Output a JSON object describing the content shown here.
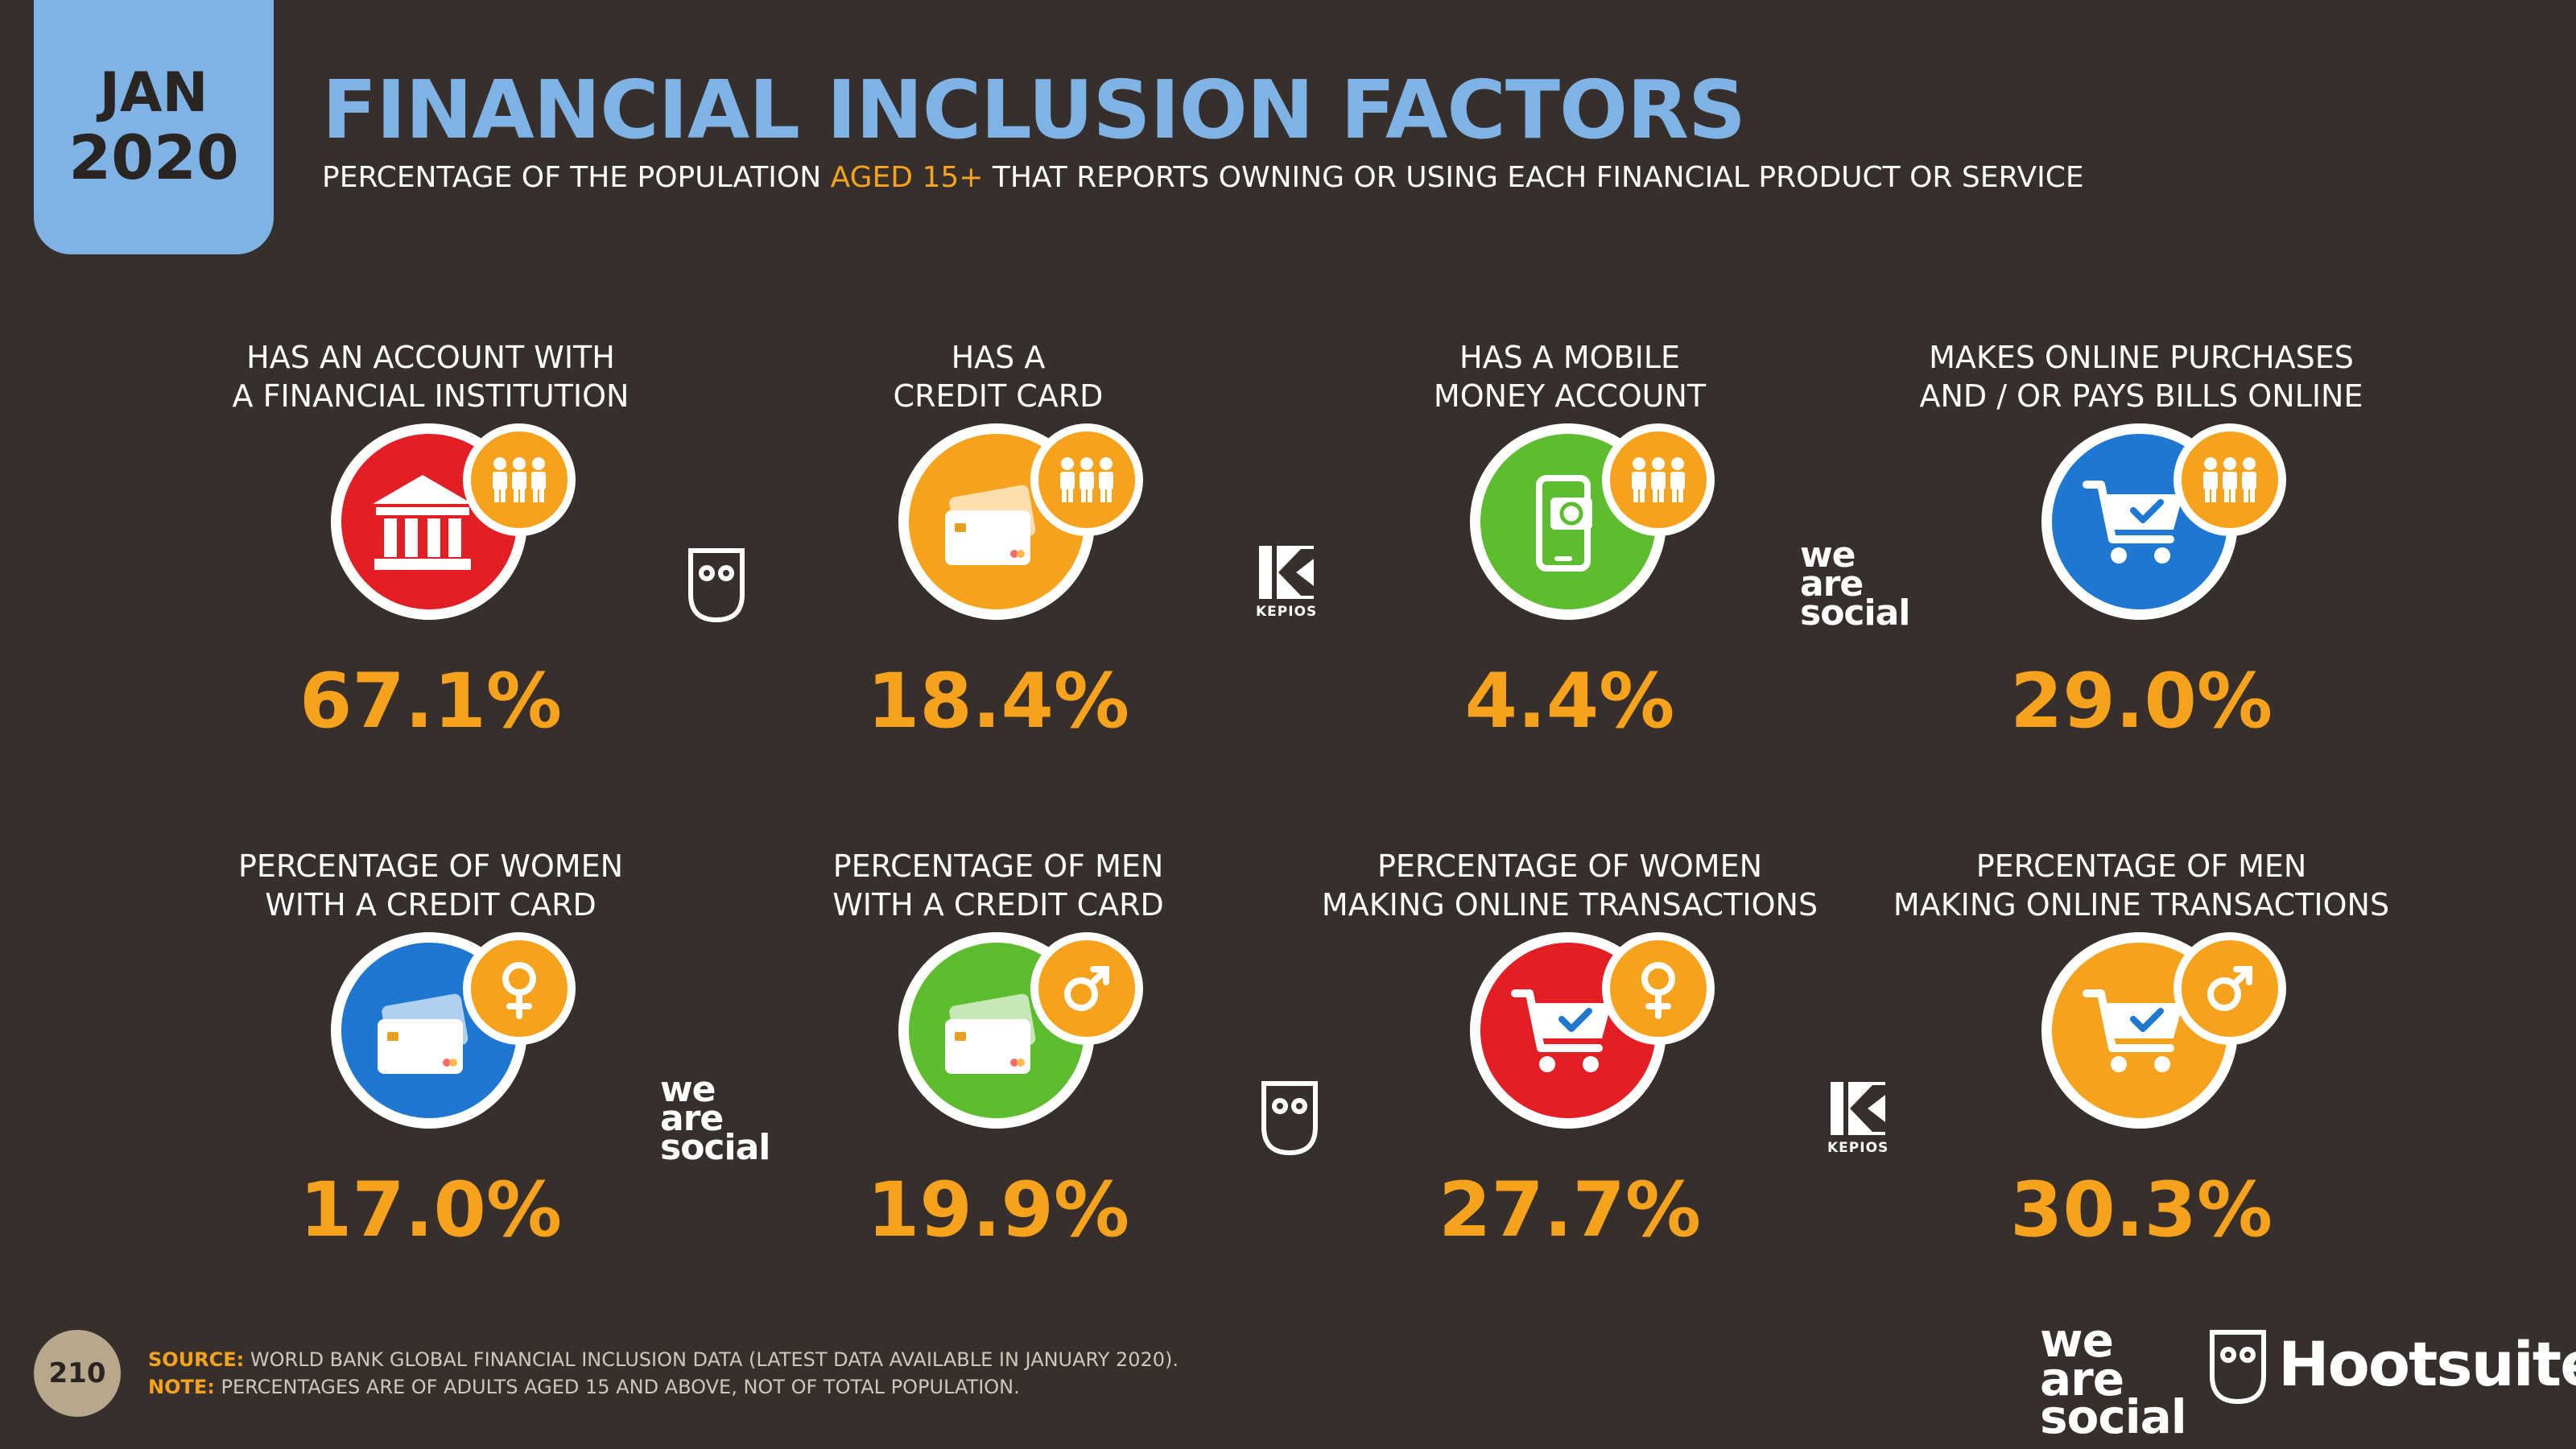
{
  "header": {
    "date_month": "JAN",
    "date_year": "2020",
    "title": "FINANCIAL INCLUSION FACTORS",
    "subtitle_pre": "PERCENTAGE OF THE POPULATION ",
    "subtitle_highlight": "AGED 15+",
    "subtitle_post": " THAT REPORTS OWNING OR USING EACH FINANCIAL PRODUCT OR SERVICE"
  },
  "colors": {
    "background": "#362f2b",
    "accent_blue": "#7fb3e6",
    "orange": "#f6a21c",
    "red": "#e31e24",
    "green": "#5ebd2e",
    "blue": "#1e78d2"
  },
  "cards": [
    {
      "label_line1": "HAS AN ACCOUNT WITH",
      "label_line2": "A FINANCIAL INSTITUTION",
      "value": "67.1%",
      "icon": "bank-icon",
      "badge": "people-icon",
      "color": "red"
    },
    {
      "label_line1": "HAS A",
      "label_line2": "CREDIT CARD",
      "value": "18.4%",
      "icon": "credit-card-icon",
      "badge": "people-icon",
      "color": "orange"
    },
    {
      "label_line1": "HAS A MOBILE",
      "label_line2": "MONEY ACCOUNT",
      "value": "4.4%",
      "icon": "mobile-money-icon",
      "badge": "people-icon",
      "color": "green"
    },
    {
      "label_line1": "MAKES ONLINE PURCHASES",
      "label_line2": "AND / OR PAYS BILLS ONLINE",
      "value": "29.0%",
      "icon": "shopping-cart-icon",
      "badge": "people-icon",
      "color": "blue"
    },
    {
      "label_line1": "PERCENTAGE OF WOMEN",
      "label_line2": "WITH A CREDIT CARD",
      "value": "17.0%",
      "icon": "credit-card-icon",
      "badge": "female-icon",
      "color": "blue"
    },
    {
      "label_line1": "PERCENTAGE OF MEN",
      "label_line2": "WITH A CREDIT CARD",
      "value": "19.9%",
      "icon": "credit-card-icon",
      "badge": "male-icon",
      "color": "green"
    },
    {
      "label_line1": "PERCENTAGE OF WOMEN",
      "label_line2": "MAKING ONLINE TRANSACTIONS",
      "value": "27.7%",
      "icon": "shopping-cart-icon",
      "badge": "female-icon",
      "color": "red"
    },
    {
      "label_line1": "PERCENTAGE OF MEN",
      "label_line2": "MAKING ONLINE TRANSACTIONS",
      "value": "30.3%",
      "icon": "shopping-cart-icon",
      "badge": "male-icon",
      "color": "orange"
    }
  ],
  "logos": {
    "kepios": "KEPIOS",
    "we": "we",
    "are": "are",
    "social": "social",
    "hootsuite": "Hootsuite"
  },
  "footer": {
    "page_number": "210",
    "source_label": "SOURCE:",
    "source_text": " WORLD BANK GLOBAL FINANCIAL INCLUSION DATA (LATEST DATA AVAILABLE IN JANUARY 2020).",
    "note_label": "NOTE:",
    "note_text": " PERCENTAGES ARE OF ADULTS AGED 15 AND ABOVE, NOT OF TOTAL POPULATION."
  }
}
